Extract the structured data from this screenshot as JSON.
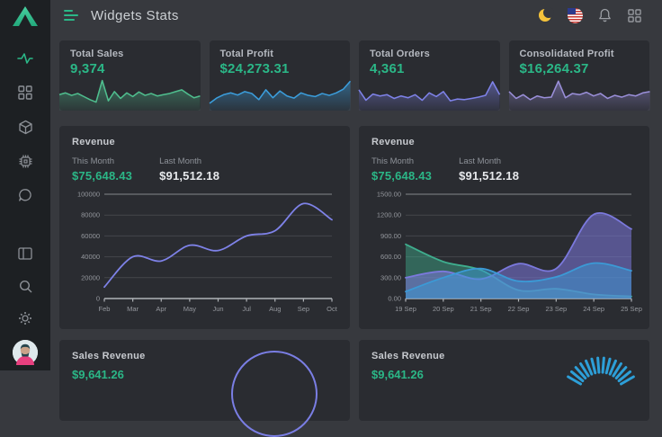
{
  "app": {
    "title": "Widgets Stats"
  },
  "header": {
    "title": "Widgets Stats",
    "icons": [
      "moon-darkmode",
      "us-flag-language",
      "bell-notifications",
      "apps-grid"
    ]
  },
  "sidebar": {
    "logo": "brand-triangle-logo",
    "nav_icons": [
      "activity",
      "grid-dashboard",
      "package-box",
      "cpu-chip",
      "chat-bubble"
    ],
    "bottom_icons": [
      "layout-panel",
      "search",
      "settings-gear"
    ],
    "avatar": "user-avatar"
  },
  "colors": {
    "accent_green": "#2bb787",
    "sidebar_bg": "#1d2023",
    "main_bg": "#37393e",
    "card_bg": "#2a2c31",
    "line_indigo": "#7e82e8",
    "spark_blue": "#3b9ddb",
    "spark_purple": "#9a8fd9",
    "gauge_blue": "#2d9fd8"
  },
  "stat_cards": [
    {
      "label": "Total Sales",
      "value": "9,374",
      "color": "#4fbe8e",
      "spark": [
        46,
        52,
        44,
        50,
        40,
        30,
        22,
        92,
        26,
        56,
        34,
        52,
        40,
        55,
        44,
        50,
        42,
        46,
        50,
        56,
        62,
        48,
        36,
        42
      ]
    },
    {
      "label": "Total Profit",
      "value": "$24,273.31",
      "color": "#3b9ddb",
      "spark": [
        18,
        35,
        46,
        52,
        45,
        56,
        50,
        30,
        62,
        36,
        58,
        42,
        35,
        52,
        44,
        40,
        50,
        44,
        52,
        64,
        90
      ]
    },
    {
      "label": "Total Orders",
      "value": "4,361",
      "color": "#7e82e8",
      "spark": [
        62,
        28,
        48,
        42,
        46,
        34,
        42,
        36,
        46,
        28,
        52,
        40,
        56,
        26,
        32,
        30,
        34,
        38,
        44,
        88,
        46
      ]
    },
    {
      "label": "Consolidated Profit",
      "value": "$16,264.37",
      "color": "#9a8fd9",
      "spark": [
        56,
        34,
        46,
        30,
        42,
        36,
        38,
        90,
        36,
        50,
        46,
        54,
        42,
        50,
        34,
        44,
        38,
        46,
        42,
        52,
        56
      ]
    }
  ],
  "revenue_line": {
    "title": "Revenue",
    "this_month_label": "This Month",
    "this_month_value": "$75,648.43",
    "last_month_label": "Last Month",
    "last_month_value": "$91,512.18",
    "chart_data": {
      "type": "line",
      "x": [
        "Feb",
        "Mar",
        "Apr",
        "May",
        "Jun",
        "Jul",
        "Aug",
        "Sep",
        "Oct"
      ],
      "values": [
        11000,
        40000,
        36000,
        51000,
        46000,
        60000,
        65000,
        91000,
        75500
      ],
      "yticks_labels": [
        "0",
        "20000",
        "40000",
        "60000",
        "80000",
        "100000"
      ],
      "ylim": [
        0,
        100000
      ],
      "color": "#7e82e8"
    }
  },
  "revenue_area": {
    "title": "Revenue",
    "this_month_label": "This Month",
    "this_month_value": "$75,648.43",
    "last_month_label": "Last Month",
    "last_month_value": "$91,512.18",
    "chart_data": {
      "type": "area",
      "x": [
        "19 Sep",
        "20 Sep",
        "21 Sep",
        "22 Sep",
        "23 Sep",
        "24 Sep",
        "25 Sep"
      ],
      "yticks_labels": [
        "0.00",
        "300.00",
        "600.00",
        "900.00",
        "1200.00",
        "1500.00"
      ],
      "ylim": [
        0,
        1500
      ],
      "series": [
        {
          "name": "series-green",
          "color": "#3fae8e",
          "opacity": 0.45,
          "values": [
            780,
            530,
            410,
            120,
            140,
            60,
            30
          ]
        },
        {
          "name": "series-purple",
          "color": "#7b79dd",
          "opacity": 0.55,
          "values": [
            300,
            390,
            280,
            500,
            430,
            1210,
            1000
          ]
        },
        {
          "name": "series-blue",
          "color": "#3b9ad6",
          "opacity": 0.5,
          "values": [
            100,
            300,
            430,
            250,
            310,
            510,
            400
          ]
        }
      ]
    }
  },
  "sales_cards": [
    {
      "title": "Sales Revenue",
      "value": "$9,641.26",
      "decor": "donut-ring",
      "color": "#7a7ee4"
    },
    {
      "title": "Sales Revenue",
      "value": "$9,641.26",
      "decor": "radial-gauge",
      "color": "#2d9fd8"
    }
  ]
}
